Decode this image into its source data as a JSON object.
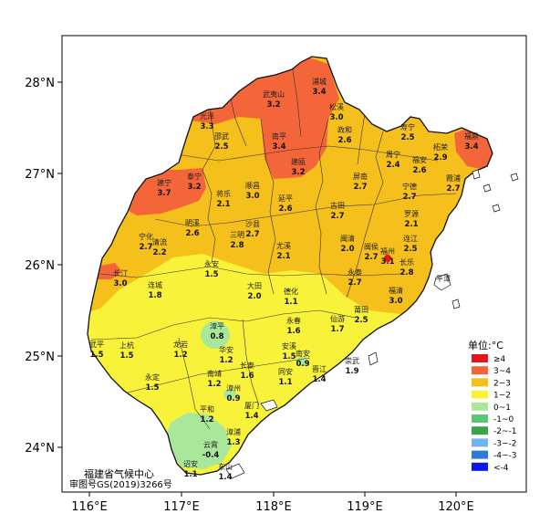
{
  "axes": {
    "lon_ticks": [
      "116°E",
      "117°E",
      "118°E",
      "119°E",
      "120°E"
    ],
    "lat_ticks": [
      "28°N",
      "27°N",
      "26°N",
      "25°N",
      "24°N"
    ]
  },
  "legend": {
    "title": "单位:°C",
    "items": [
      {
        "label": "≥4",
        "color": "#e8141c"
      },
      {
        "label": "3~4",
        "color": "#f4663a"
      },
      {
        "label": "2~3",
        "color": "#f5bf1c"
      },
      {
        "label": "1~2",
        "color": "#f8f23a"
      },
      {
        "label": "0~1",
        "color": "#a9e89a"
      },
      {
        "label": "-1~0",
        "color": "#5cc477"
      },
      {
        "label": "-2~-1",
        "color": "#3aa548"
      },
      {
        "label": "-3~-2",
        "color": "#6fb3ef"
      },
      {
        "label": "-4~-3",
        "color": "#2f79d8"
      },
      {
        "label": "<-4",
        "color": "#0a17e8"
      }
    ]
  },
  "credit": {
    "line1": "福建省气候中心",
    "line2": "审图号GS(2019)3266号"
  },
  "stations": [
    {
      "name": "浦城",
      "value": "3.4"
    },
    {
      "name": "武夷山",
      "value": "3.2"
    },
    {
      "name": "松溪",
      "value": "3.0"
    },
    {
      "name": "光泽",
      "value": "3.3"
    },
    {
      "name": "邵武",
      "value": "2.5"
    },
    {
      "name": "南平",
      "value": "3.4"
    },
    {
      "name": "政和",
      "value": "2.6"
    },
    {
      "name": "建瓯",
      "value": "3.2"
    },
    {
      "name": "寿宁",
      "value": "2.5"
    },
    {
      "name": "周宁",
      "value": "2.4"
    },
    {
      "name": "福安",
      "value": "2.6"
    },
    {
      "name": "柘荣",
      "value": "2.9"
    },
    {
      "name": "福鼎",
      "value": "3.4"
    },
    {
      "name": "建宁",
      "value": "3.7"
    },
    {
      "name": "泰宁",
      "value": "3.2"
    },
    {
      "name": "将乐",
      "value": "2.1"
    },
    {
      "name": "顺昌",
      "value": "3.0"
    },
    {
      "name": "延平",
      "value": "2.6"
    },
    {
      "name": "屏南",
      "value": "2.7"
    },
    {
      "name": "古田",
      "value": "2.7"
    },
    {
      "name": "宁德",
      "value": "2.7"
    },
    {
      "name": "霞浦",
      "value": "2.7"
    },
    {
      "name": "明溪",
      "value": "2.6"
    },
    {
      "name": "沙县",
      "value": "2.7"
    },
    {
      "name": "三明",
      "value": "2.8"
    },
    {
      "name": "尤溪",
      "value": "2.1"
    },
    {
      "name": "罗源",
      "value": "2.1"
    },
    {
      "name": "宁化",
      "value": "2.7"
    },
    {
      "name": "清流",
      "value": "2.2"
    },
    {
      "name": "闽清",
      "value": "2.0"
    },
    {
      "name": "闽侯",
      "value": "2.7"
    },
    {
      "name": "福州",
      "value": "3.1"
    },
    {
      "name": "连江",
      "value": "2.5"
    },
    {
      "name": "长乐",
      "value": "2.8"
    },
    {
      "name": "长汀",
      "value": "3.0"
    },
    {
      "name": "连城",
      "value": "1.8"
    },
    {
      "name": "永安",
      "value": "1.5"
    },
    {
      "name": "大田",
      "value": "2.0"
    },
    {
      "name": "德化",
      "value": "1.1"
    },
    {
      "name": "永泰",
      "value": "2.7"
    },
    {
      "name": "福清",
      "value": "3.0"
    },
    {
      "name": "平潭",
      "value": ""
    },
    {
      "name": "莆田",
      "value": "2.5"
    },
    {
      "name": "仙游",
      "value": "1.7"
    },
    {
      "name": "永春",
      "value": "1.6"
    },
    {
      "name": "漳平",
      "value": "0.8"
    },
    {
      "name": "武平",
      "value": "1.5"
    },
    {
      "name": "上杭",
      "value": "1.5"
    },
    {
      "name": "龙岩",
      "value": "1.2"
    },
    {
      "name": "华安",
      "value": "1.2"
    },
    {
      "name": "安溪",
      "value": "1.5"
    },
    {
      "name": "南安",
      "value": "0.9"
    },
    {
      "name": "崇武",
      "value": "1.9"
    },
    {
      "name": "永定",
      "value": "1.5"
    },
    {
      "name": "南靖",
      "value": "1.2"
    },
    {
      "name": "长泰",
      "value": "1.6"
    },
    {
      "name": "同安",
      "value": "1.1"
    },
    {
      "name": "晋江",
      "value": "1.4"
    },
    {
      "name": "漳州",
      "value": "0.9"
    },
    {
      "name": "平和",
      "value": "1.2"
    },
    {
      "name": "厦门",
      "value": "1.4"
    },
    {
      "name": "漳浦",
      "value": "1.3"
    },
    {
      "name": "云霄",
      "value": "-0.4"
    },
    {
      "name": "诏安",
      "value": "1.1"
    },
    {
      "name": "东山",
      "value": "1.4"
    }
  ]
}
